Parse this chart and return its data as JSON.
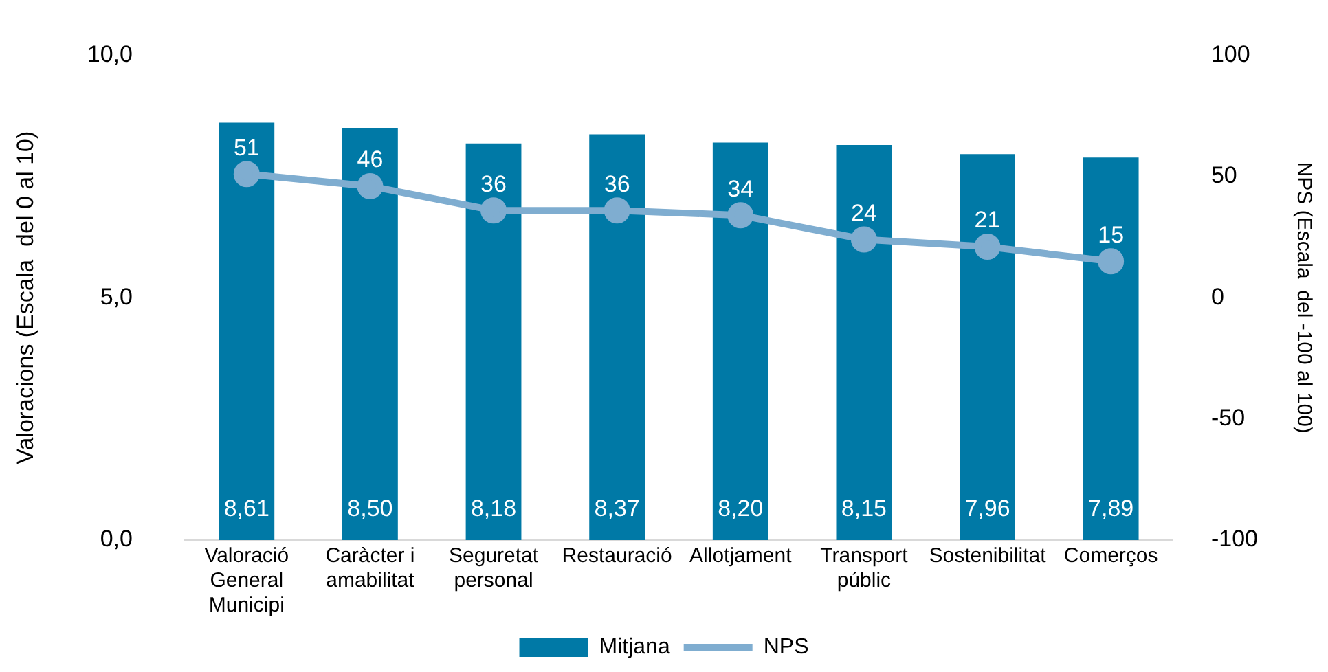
{
  "chart_data": {
    "type": "bar",
    "categories": [
      "Valoració General Municipi",
      "Caràcter i amabilitat",
      "Seguretat personal",
      "Restauració",
      "Allotjament",
      "Transport públic",
      "Sostenibilitat",
      "Comerços"
    ],
    "ylabel": "Valoracions (Escala  del 0 al 10)",
    "y2label": "NPS (Escala  del -100 al 100)",
    "ylim": [
      0,
      10
    ],
    "yticks": [
      {
        "value": 0,
        "label": "0,0"
      },
      {
        "value": 5,
        "label": "5,0"
      },
      {
        "value": 10,
        "label": "10,0"
      }
    ],
    "y2lim": [
      -100,
      100
    ],
    "y2ticks": [
      -100,
      -50,
      0,
      50,
      100
    ],
    "series": [
      {
        "name": "Mitjana",
        "color": "#0079a6",
        "values": [
          8.61,
          8.5,
          8.18,
          8.37,
          8.2,
          8.15,
          7.96,
          7.89
        ],
        "value_labels": [
          "8,61",
          "8,50",
          "8,18",
          "8,37",
          "8,20",
          "8,15",
          "7,96",
          "7,89"
        ]
      },
      {
        "name": "NPS",
        "type": "line",
        "axis": "y2",
        "color": "#7fadd0",
        "marker": "circle",
        "values": [
          51,
          46,
          36,
          36,
          34,
          24,
          21,
          15
        ],
        "value_labels": [
          "51",
          "46",
          "36",
          "36",
          "34",
          "24",
          "21",
          "15"
        ]
      }
    ],
    "grid": false,
    "legend": "bottom"
  }
}
